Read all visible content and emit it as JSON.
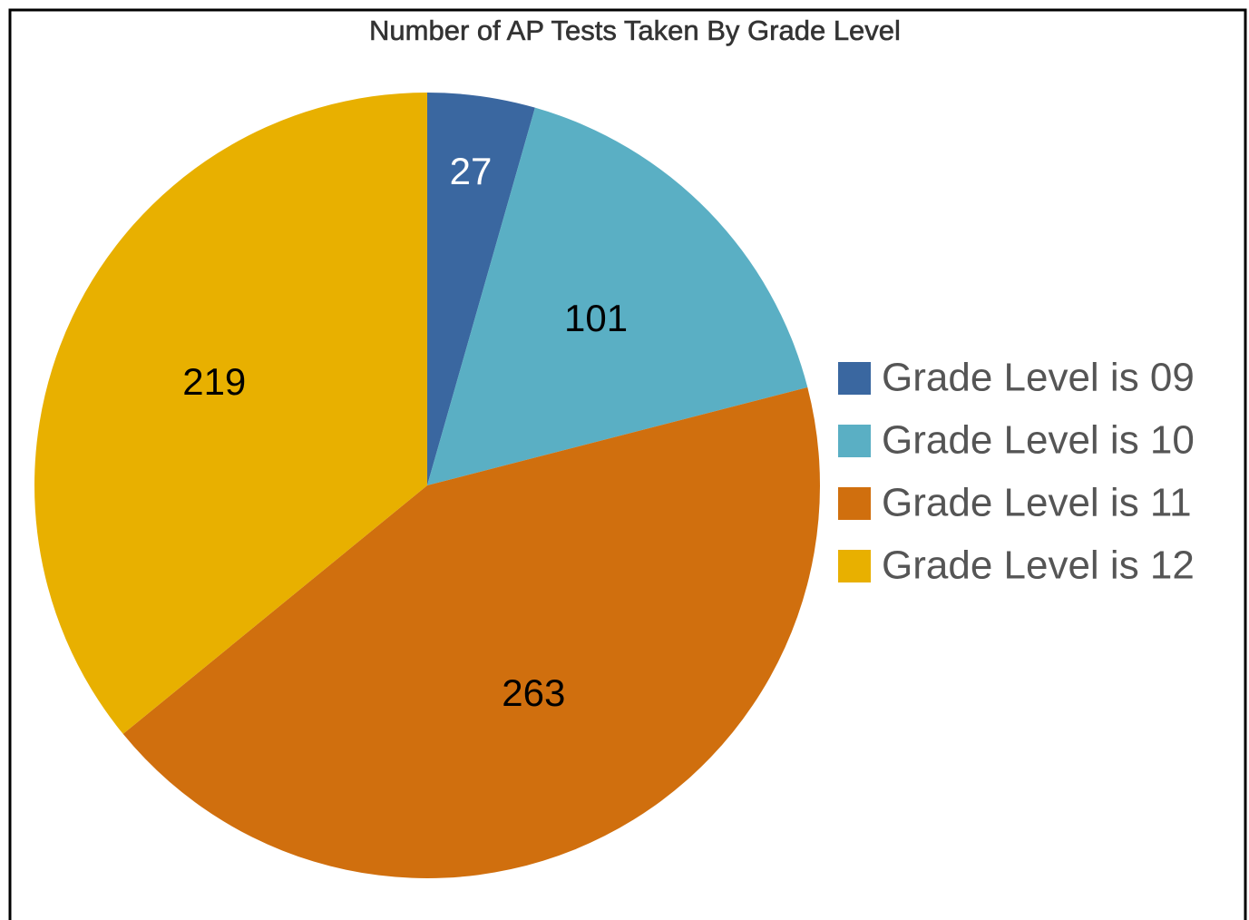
{
  "chart_data": {
    "type": "pie",
    "title": "Number of AP Tests Taken By Grade Level",
    "categories": [
      "Grade Level is 09",
      "Grade Level is 10",
      "Grade Level is 11",
      "Grade Level is 12"
    ],
    "values": [
      27,
      101,
      263,
      219
    ],
    "colors": [
      "#3a67a0",
      "#5aafc4",
      "#d06f0e",
      "#e8b000"
    ],
    "legend": "right"
  }
}
